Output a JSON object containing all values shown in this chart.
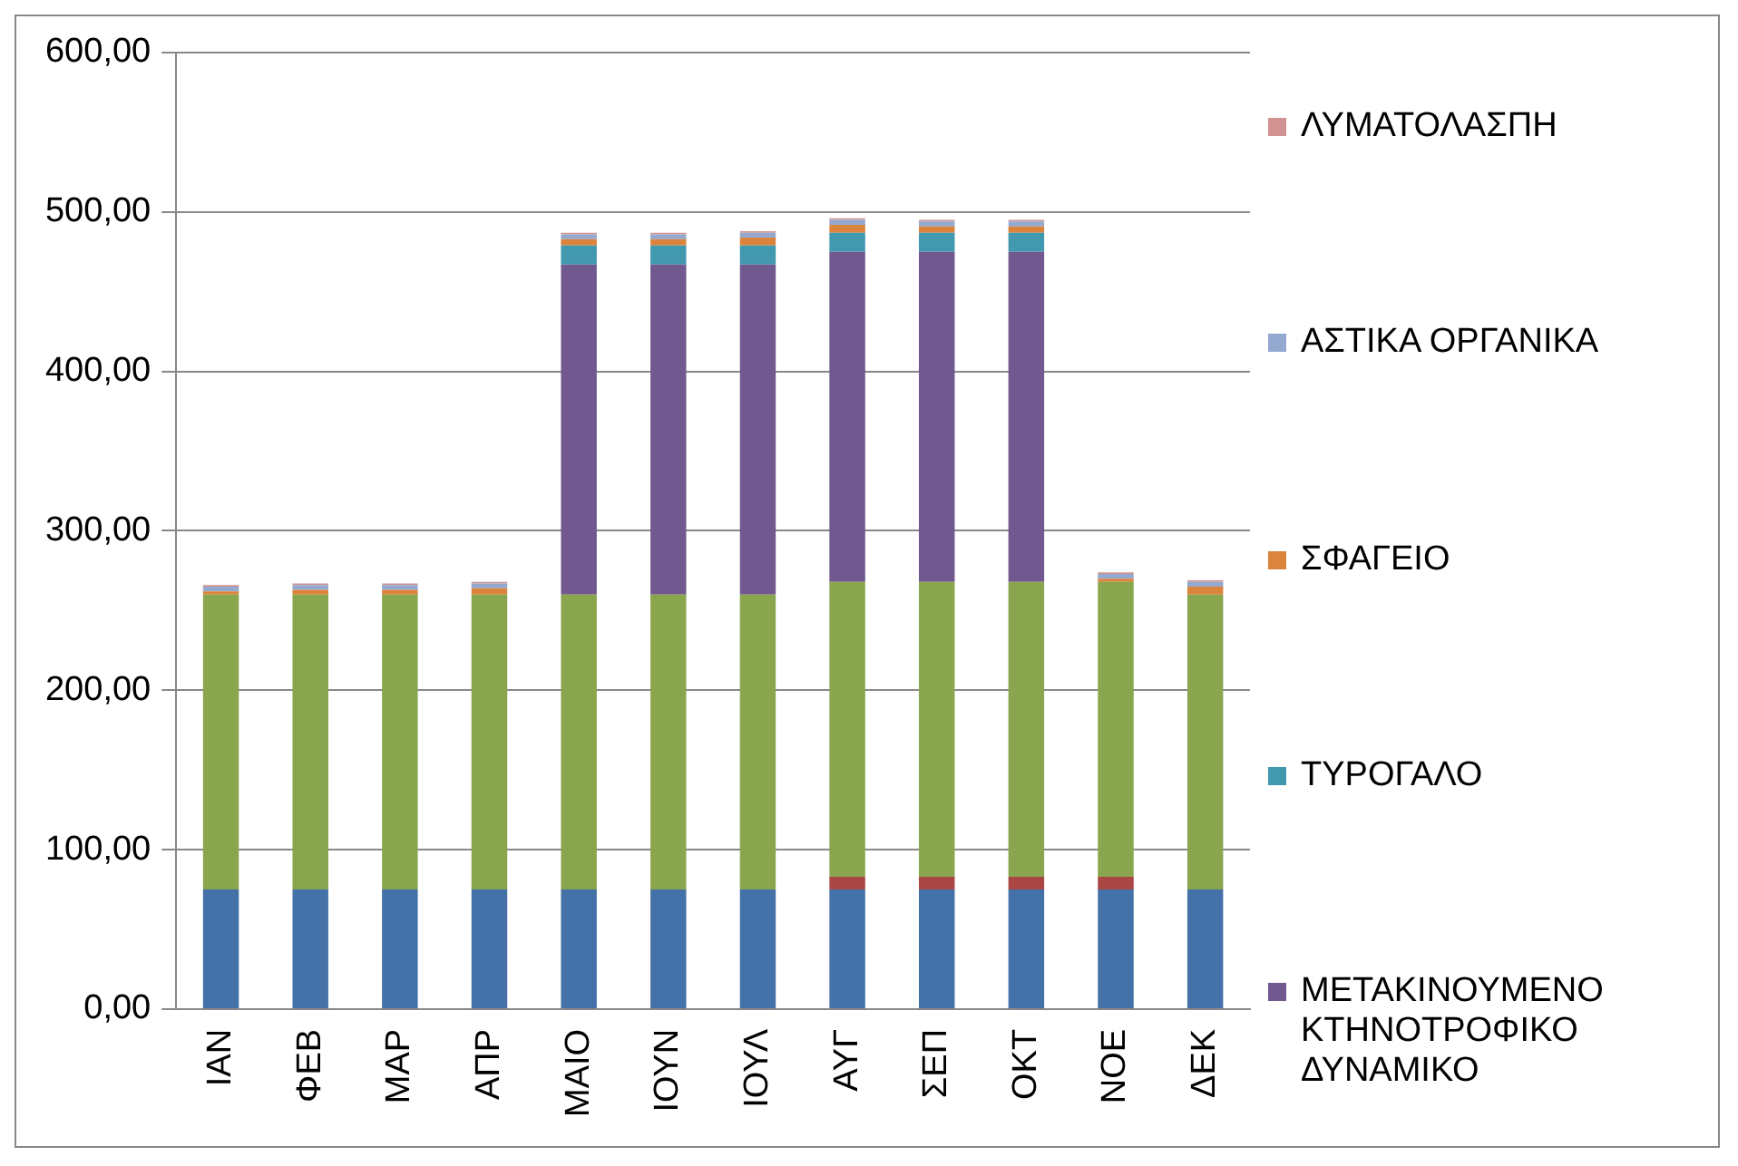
{
  "chart_data": {
    "type": "bar",
    "stacked": true,
    "categories": [
      "ΙΑΝ",
      "ΦΕΒ",
      "ΜΑΡ",
      "ΑΠΡ",
      "ΜΑΙΟ",
      "ΙΟΥΝ",
      "ΙΟΥΛ",
      "ΑΥΓ",
      "ΣΕΠ",
      "ΟΚΤ",
      "ΝΟΕ",
      "ΔΕΚ"
    ],
    "series": [
      {
        "color": "#4472a8",
        "values": [
          75,
          75,
          75,
          75,
          75,
          75,
          75,
          75,
          75,
          75,
          75,
          75
        ]
      },
      {
        "color": "#aa4643",
        "values": [
          0,
          0,
          0,
          0,
          0,
          0,
          0,
          8,
          8,
          8,
          8,
          0
        ]
      },
      {
        "color": "#89a54e",
        "values": [
          185,
          185,
          185,
          185,
          185,
          185,
          185,
          185,
          185,
          185,
          185,
          185
        ]
      },
      {
        "name": "ΜΕΤΑΚΙΝΟΥΜΕΝΟ ΚΤΗΝΟΤΡΟΦΙΚΟ ΔΥΝΑΜΙΚΟ",
        "color": "#71588f",
        "values": [
          0,
          0,
          0,
          0,
          207,
          207,
          207,
          207,
          207,
          207,
          0,
          0
        ]
      },
      {
        "name": "ΤΥΡΟΓΑΛΟ",
        "color": "#4198af",
        "values": [
          0,
          0,
          0,
          0,
          12,
          12,
          12,
          12,
          12,
          12,
          0,
          0
        ]
      },
      {
        "name": "ΣΦΑΓΕΙΟ",
        "color": "#db843d",
        "values": [
          2,
          3,
          3,
          4,
          4,
          4,
          5,
          5,
          4,
          4,
          2,
          5
        ]
      },
      {
        "name": "ΑΣΤΙΚΑ ΟΡΓΑΝΙΚΑ",
        "color": "#93a9cf",
        "values": [
          3,
          3,
          3,
          3,
          3,
          3,
          3,
          3,
          3,
          3,
          3,
          3
        ]
      },
      {
        "name": "ΛΥΜΑΤΟΛΑΣΠΗ",
        "color": "#d19392",
        "values": [
          1,
          1,
          1,
          1,
          1,
          1,
          1,
          1,
          1,
          1,
          1,
          1
        ]
      }
    ],
    "ylim": [
      0,
      600
    ],
    "yticks": [
      {
        "value": 0,
        "label": "0,00"
      },
      {
        "value": 100,
        "label": "100,00"
      },
      {
        "value": 200,
        "label": "200,00"
      },
      {
        "value": 300,
        "label": "300,00"
      },
      {
        "value": 400,
        "label": "400,00"
      },
      {
        "value": 500,
        "label": "500,00"
      },
      {
        "value": 600,
        "label": "600,00"
      }
    ],
    "grid": "y",
    "legend": "right"
  }
}
